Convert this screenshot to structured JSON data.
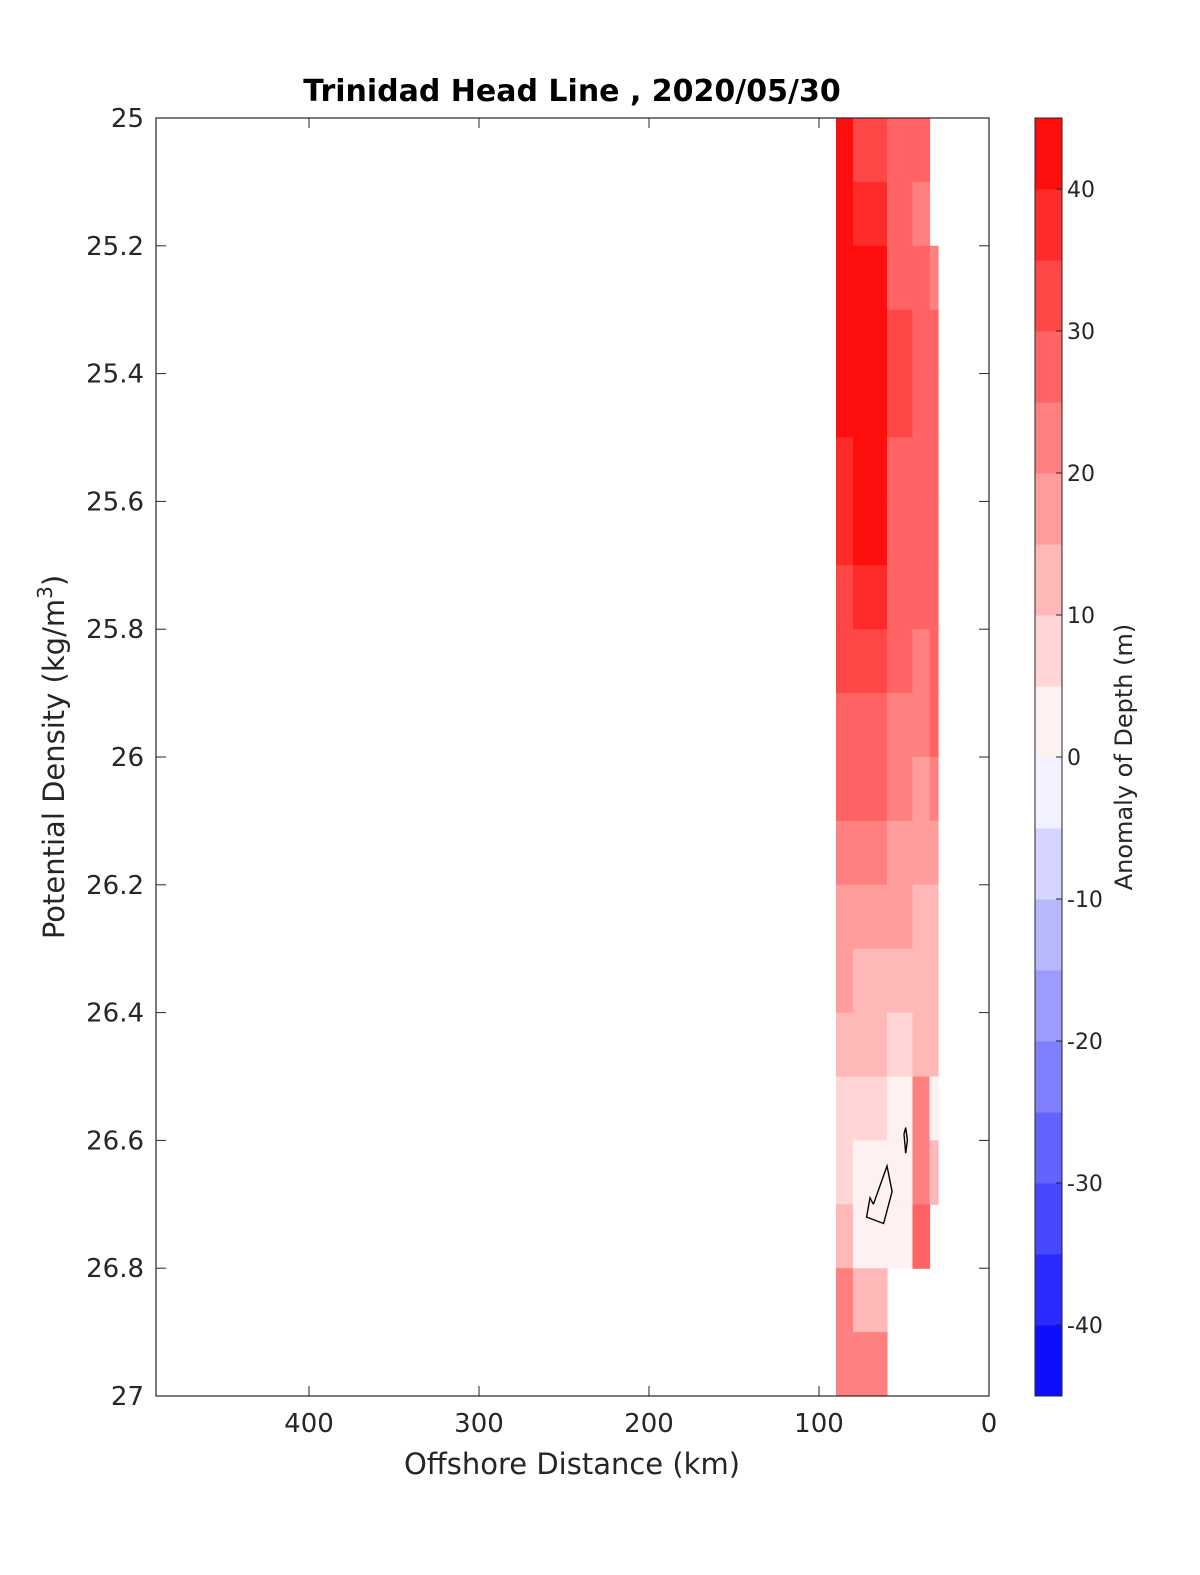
{
  "chart_data": {
    "type": "heatmap",
    "title": "Trinidad Head Line , 2020/05/30",
    "xlabel": "Offshore Distance (km)",
    "ylabel_main": "Potential Density (kg/m",
    "ylabel_sup": "3",
    "ylabel_close": ")",
    "xlim": [
      490,
      0
    ],
    "x_reversed": true,
    "ylim": [
      25,
      27
    ],
    "y_reversed": true,
    "xticks": [
      400,
      300,
      200,
      100,
      0
    ],
    "yticks": [
      25,
      25.2,
      25.4,
      25.6,
      25.8,
      26,
      26.2,
      26.4,
      26.6,
      26.8,
      27
    ],
    "ytick_labels": [
      "25",
      "25.2",
      "25.4",
      "25.6",
      "25.8",
      "26",
      "26.2",
      "26.4",
      "26.6",
      "26.8",
      "27"
    ],
    "colorbar": {
      "label": "Anomaly of Depth (m)",
      "range": [
        -45,
        45
      ],
      "step": 5,
      "ticks": [
        40,
        30,
        20,
        10,
        0,
        -10,
        -20,
        -30,
        -40
      ],
      "colormap": "blue-white-red",
      "low_color": "#0000ff",
      "mid_color": "#ffffff",
      "high_color": "#ff0000"
    },
    "stations_km": [
      90,
      70,
      50,
      40,
      30
    ],
    "density_levels": [
      25.0,
      25.1,
      25.2,
      25.3,
      25.4,
      25.5,
      25.6,
      25.7,
      25.8,
      25.9,
      26.0,
      26.1,
      26.2,
      26.3,
      26.4,
      26.5,
      26.6,
      26.7,
      26.8,
      26.9
    ],
    "anomaly_grid": [
      [
        43,
        30,
        27,
        25,
        null
      ],
      [
        43,
        38,
        28,
        24,
        null
      ],
      [
        43,
        42,
        29,
        25,
        24
      ],
      [
        42,
        44,
        30,
        26,
        25
      ],
      [
        41,
        44,
        30,
        27,
        26
      ],
      [
        39,
        43,
        29,
        27,
        27
      ],
      [
        37,
        41,
        28,
        26,
        28
      ],
      [
        34,
        38,
        27,
        25,
        29
      ],
      [
        31,
        33,
        25,
        24,
        28
      ],
      [
        28,
        29,
        23,
        22,
        25
      ],
      [
        25,
        25,
        21,
        19,
        20
      ],
      [
        21,
        21,
        18,
        15,
        16
      ],
      [
        18,
        17,
        15,
        13,
        14
      ],
      [
        15,
        14,
        13,
        12,
        13
      ],
      [
        12,
        10,
        9,
        11,
        11
      ],
      [
        8,
        6,
        4,
        22,
        2
      ],
      [
        5,
        3,
        0,
        24,
        12
      ],
      [
        10,
        0,
        3,
        25,
        null
      ],
      [
        20,
        14,
        null,
        null,
        null
      ],
      [
        24,
        22,
        null,
        null,
        null
      ]
    ],
    "zero_contours": [
      {
        "x": [
          68,
          60,
          57,
          62,
          72,
          70,
          68
        ],
        "y": [
          26.7,
          26.64,
          26.68,
          26.73,
          26.72,
          26.69,
          26.7
        ]
      },
      {
        "x": [
          50,
          49,
          48,
          49,
          50
        ],
        "y": [
          26.59,
          26.58,
          26.6,
          26.62,
          26.59
        ]
      }
    ]
  }
}
